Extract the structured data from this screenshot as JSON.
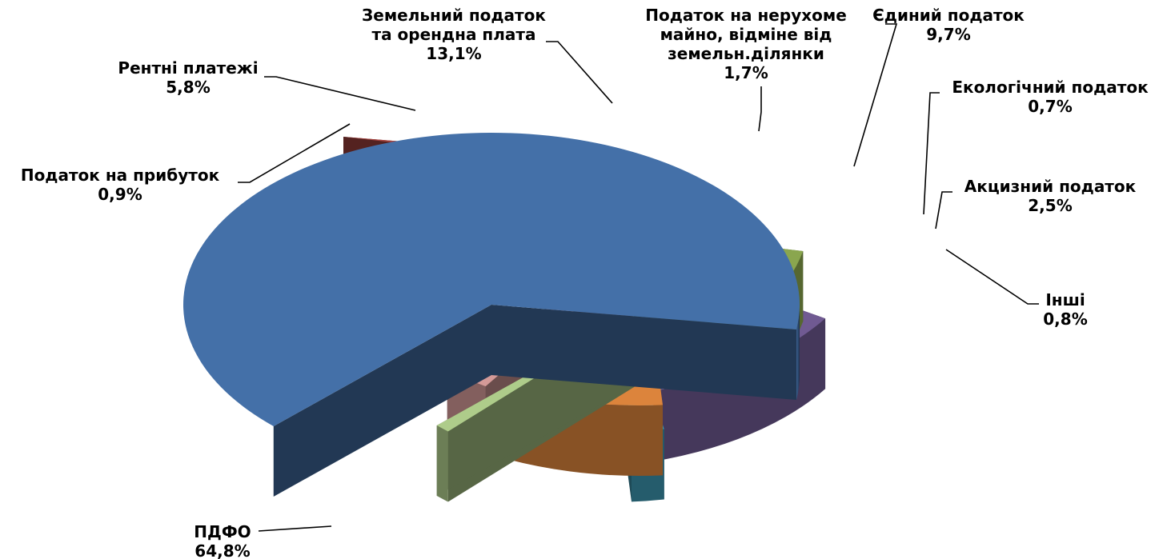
{
  "chart_data": {
    "type": "pie",
    "title": "",
    "slices": [
      {
        "label_lines": [
          "ПДФО"
        ],
        "value": 64.8,
        "value_label": "64,8%",
        "color": "#4470A8"
      },
      {
        "label_lines": [
          "Податок на прибуток"
        ],
        "value": 0.9,
        "value_label": "0,9%",
        "color": "#A84440"
      },
      {
        "label_lines": [
          "Рентні платежі"
        ],
        "value": 5.8,
        "value_label": "5,8%",
        "color": "#8AA64E"
      },
      {
        "label_lines": [
          "Земельний податок",
          "та орендна плата"
        ],
        "value": 13.1,
        "value_label": "13,1%",
        "color": "#705A92"
      },
      {
        "label_lines": [
          "Податок на нерухоме",
          "майно, відміне від",
          "земельн.ділянки"
        ],
        "value": 1.7,
        "value_label": "1,7%",
        "color": "#3C94AE"
      },
      {
        "label_lines": [
          "Єдиний податок"
        ],
        "value": 9.7,
        "value_label": "9,7%",
        "color": "#DC843C"
      },
      {
        "label_lines": [
          "Екологічний податок"
        ],
        "value": 0.7,
        "value_label": "0,7%",
        "color": "#92A8CE"
      },
      {
        "label_lines": [
          "Акцизний податок"
        ],
        "value": 2.5,
        "value_label": "2,5%",
        "color": "#D49A98"
      },
      {
        "label_lines": [
          "Інші"
        ],
        "value": 0.8,
        "value_label": "0,8%",
        "color": "#AECC8A"
      }
    ],
    "style": "3d-exploded-pie"
  }
}
